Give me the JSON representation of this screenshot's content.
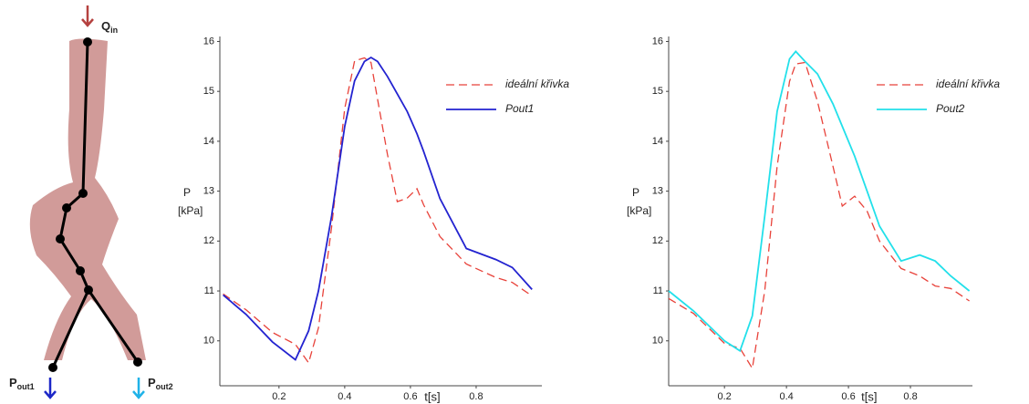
{
  "diagram": {
    "labels": [
      {
        "symbol": "Q",
        "subscript": "in"
      },
      {
        "symbol": "P",
        "subscript": "out1"
      },
      {
        "symbol": "P",
        "subscript": "out2"
      }
    ]
  },
  "chart_data": [
    {
      "type": "line",
      "xlabel": "t[s]",
      "ylabel": "P",
      "ylabel_unit": "[kPa]",
      "xlim": [
        0.02,
        1.0
      ],
      "ylim": [
        9.1,
        16.1
      ],
      "xticks": [
        0.2,
        0.4,
        0.6,
        0.8
      ],
      "yticks": [
        10,
        11,
        12,
        13,
        14,
        15,
        16
      ],
      "grid": false,
      "legend": "upper right",
      "x": [
        0.03,
        0.1,
        0.18,
        0.25,
        0.29,
        0.32,
        0.36,
        0.4,
        0.43,
        0.46,
        0.48,
        0.5,
        0.53,
        0.56,
        0.59,
        0.62,
        0.64,
        0.69,
        0.77,
        0.86,
        0.91,
        0.97
      ],
      "series": [
        {
          "name": "ideální křivka",
          "color": "#e8423a",
          "dashed": true,
          "values": [
            10.94,
            10.62,
            10.17,
            9.93,
            9.56,
            10.26,
            12.28,
            14.66,
            15.61,
            15.67,
            15.58,
            14.84,
            13.74,
            12.79,
            12.86,
            13.05,
            12.73,
            12.09,
            11.54,
            11.27,
            11.17,
            10.9
          ]
        },
        {
          "name": "Pout1",
          "color": "#2323d0",
          "dashed": false,
          "values": [
            10.92,
            10.53,
            9.98,
            9.62,
            10.2,
            11.0,
            12.5,
            14.3,
            15.21,
            15.6,
            15.68,
            15.6,
            15.3,
            14.95,
            14.6,
            14.15,
            13.8,
            12.85,
            11.85,
            11.63,
            11.47,
            11.03
          ]
        }
      ]
    },
    {
      "type": "line",
      "xlabel": "t[s]",
      "ylabel": "P",
      "ylabel_unit": "[kPa]",
      "xlim": [
        0.02,
        1.0
      ],
      "ylim": [
        9.1,
        16.1
      ],
      "xticks": [
        0.2,
        0.4,
        0.6,
        0.8
      ],
      "yticks": [
        10,
        11,
        12,
        13,
        14,
        15,
        16
      ],
      "grid": false,
      "legend": "upper right",
      "x": [
        0.02,
        0.1,
        0.2,
        0.25,
        0.29,
        0.33,
        0.37,
        0.41,
        0.43,
        0.46,
        0.5,
        0.55,
        0.58,
        0.62,
        0.66,
        0.7,
        0.77,
        0.83,
        0.88,
        0.93,
        0.99
      ],
      "series": [
        {
          "name": "ideální křivka",
          "color": "#e8423a",
          "dashed": true,
          "values": [
            10.85,
            10.55,
            9.95,
            9.85,
            9.45,
            11.0,
            13.5,
            15.2,
            15.55,
            15.58,
            14.8,
            13.5,
            12.7,
            12.9,
            12.6,
            12.0,
            11.45,
            11.3,
            11.1,
            11.05,
            10.8
          ]
        },
        {
          "name": "Pout2",
          "color": "#22e0ea",
          "dashed": false,
          "values": [
            11.0,
            10.6,
            10.0,
            9.8,
            10.5,
            12.5,
            14.6,
            15.65,
            15.8,
            15.6,
            15.35,
            14.75,
            14.3,
            13.7,
            13.0,
            12.3,
            11.6,
            11.72,
            11.6,
            11.3,
            11.0
          ]
        }
      ]
    }
  ]
}
